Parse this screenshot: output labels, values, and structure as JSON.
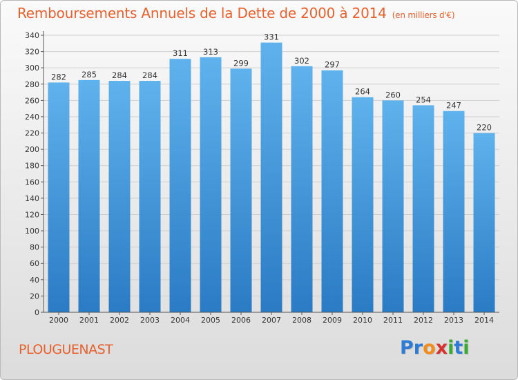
{
  "header": {
    "title": "Remboursements Annuels de la Dette de 2000 à 2014",
    "unit": "(en milliers d'€)"
  },
  "footer": {
    "commune": "PLOUGUENAST",
    "logo_text": "Proxiti"
  },
  "colors": {
    "title": "#e8602c",
    "bar_top": "#5fb2ec",
    "bar_bottom": "#2a7bc4",
    "grid": "#cfcfcf",
    "logo": [
      "#2e7bd6",
      "#2e7bd6",
      "#f28c1c",
      "#d8322c",
      "#3aaa35",
      "#2e7bd6",
      "#3aaa35"
    ]
  },
  "chart_data": {
    "type": "bar",
    "title": "Remboursements Annuels de la Dette de 2000 à 2014",
    "categories": [
      "2000",
      "2001",
      "2002",
      "2003",
      "2004",
      "2005",
      "2006",
      "2007",
      "2008",
      "2009",
      "2010",
      "2011",
      "2012",
      "2013",
      "2014"
    ],
    "values": [
      282,
      285,
      284,
      284,
      311,
      313,
      299,
      331,
      302,
      297,
      264,
      260,
      254,
      247,
      220
    ],
    "ylim": [
      0,
      340
    ],
    "yticks": [
      0,
      20,
      40,
      60,
      80,
      100,
      120,
      140,
      160,
      180,
      200,
      220,
      240,
      260,
      280,
      300,
      320,
      340
    ],
    "grid": true,
    "data_labels": true
  }
}
